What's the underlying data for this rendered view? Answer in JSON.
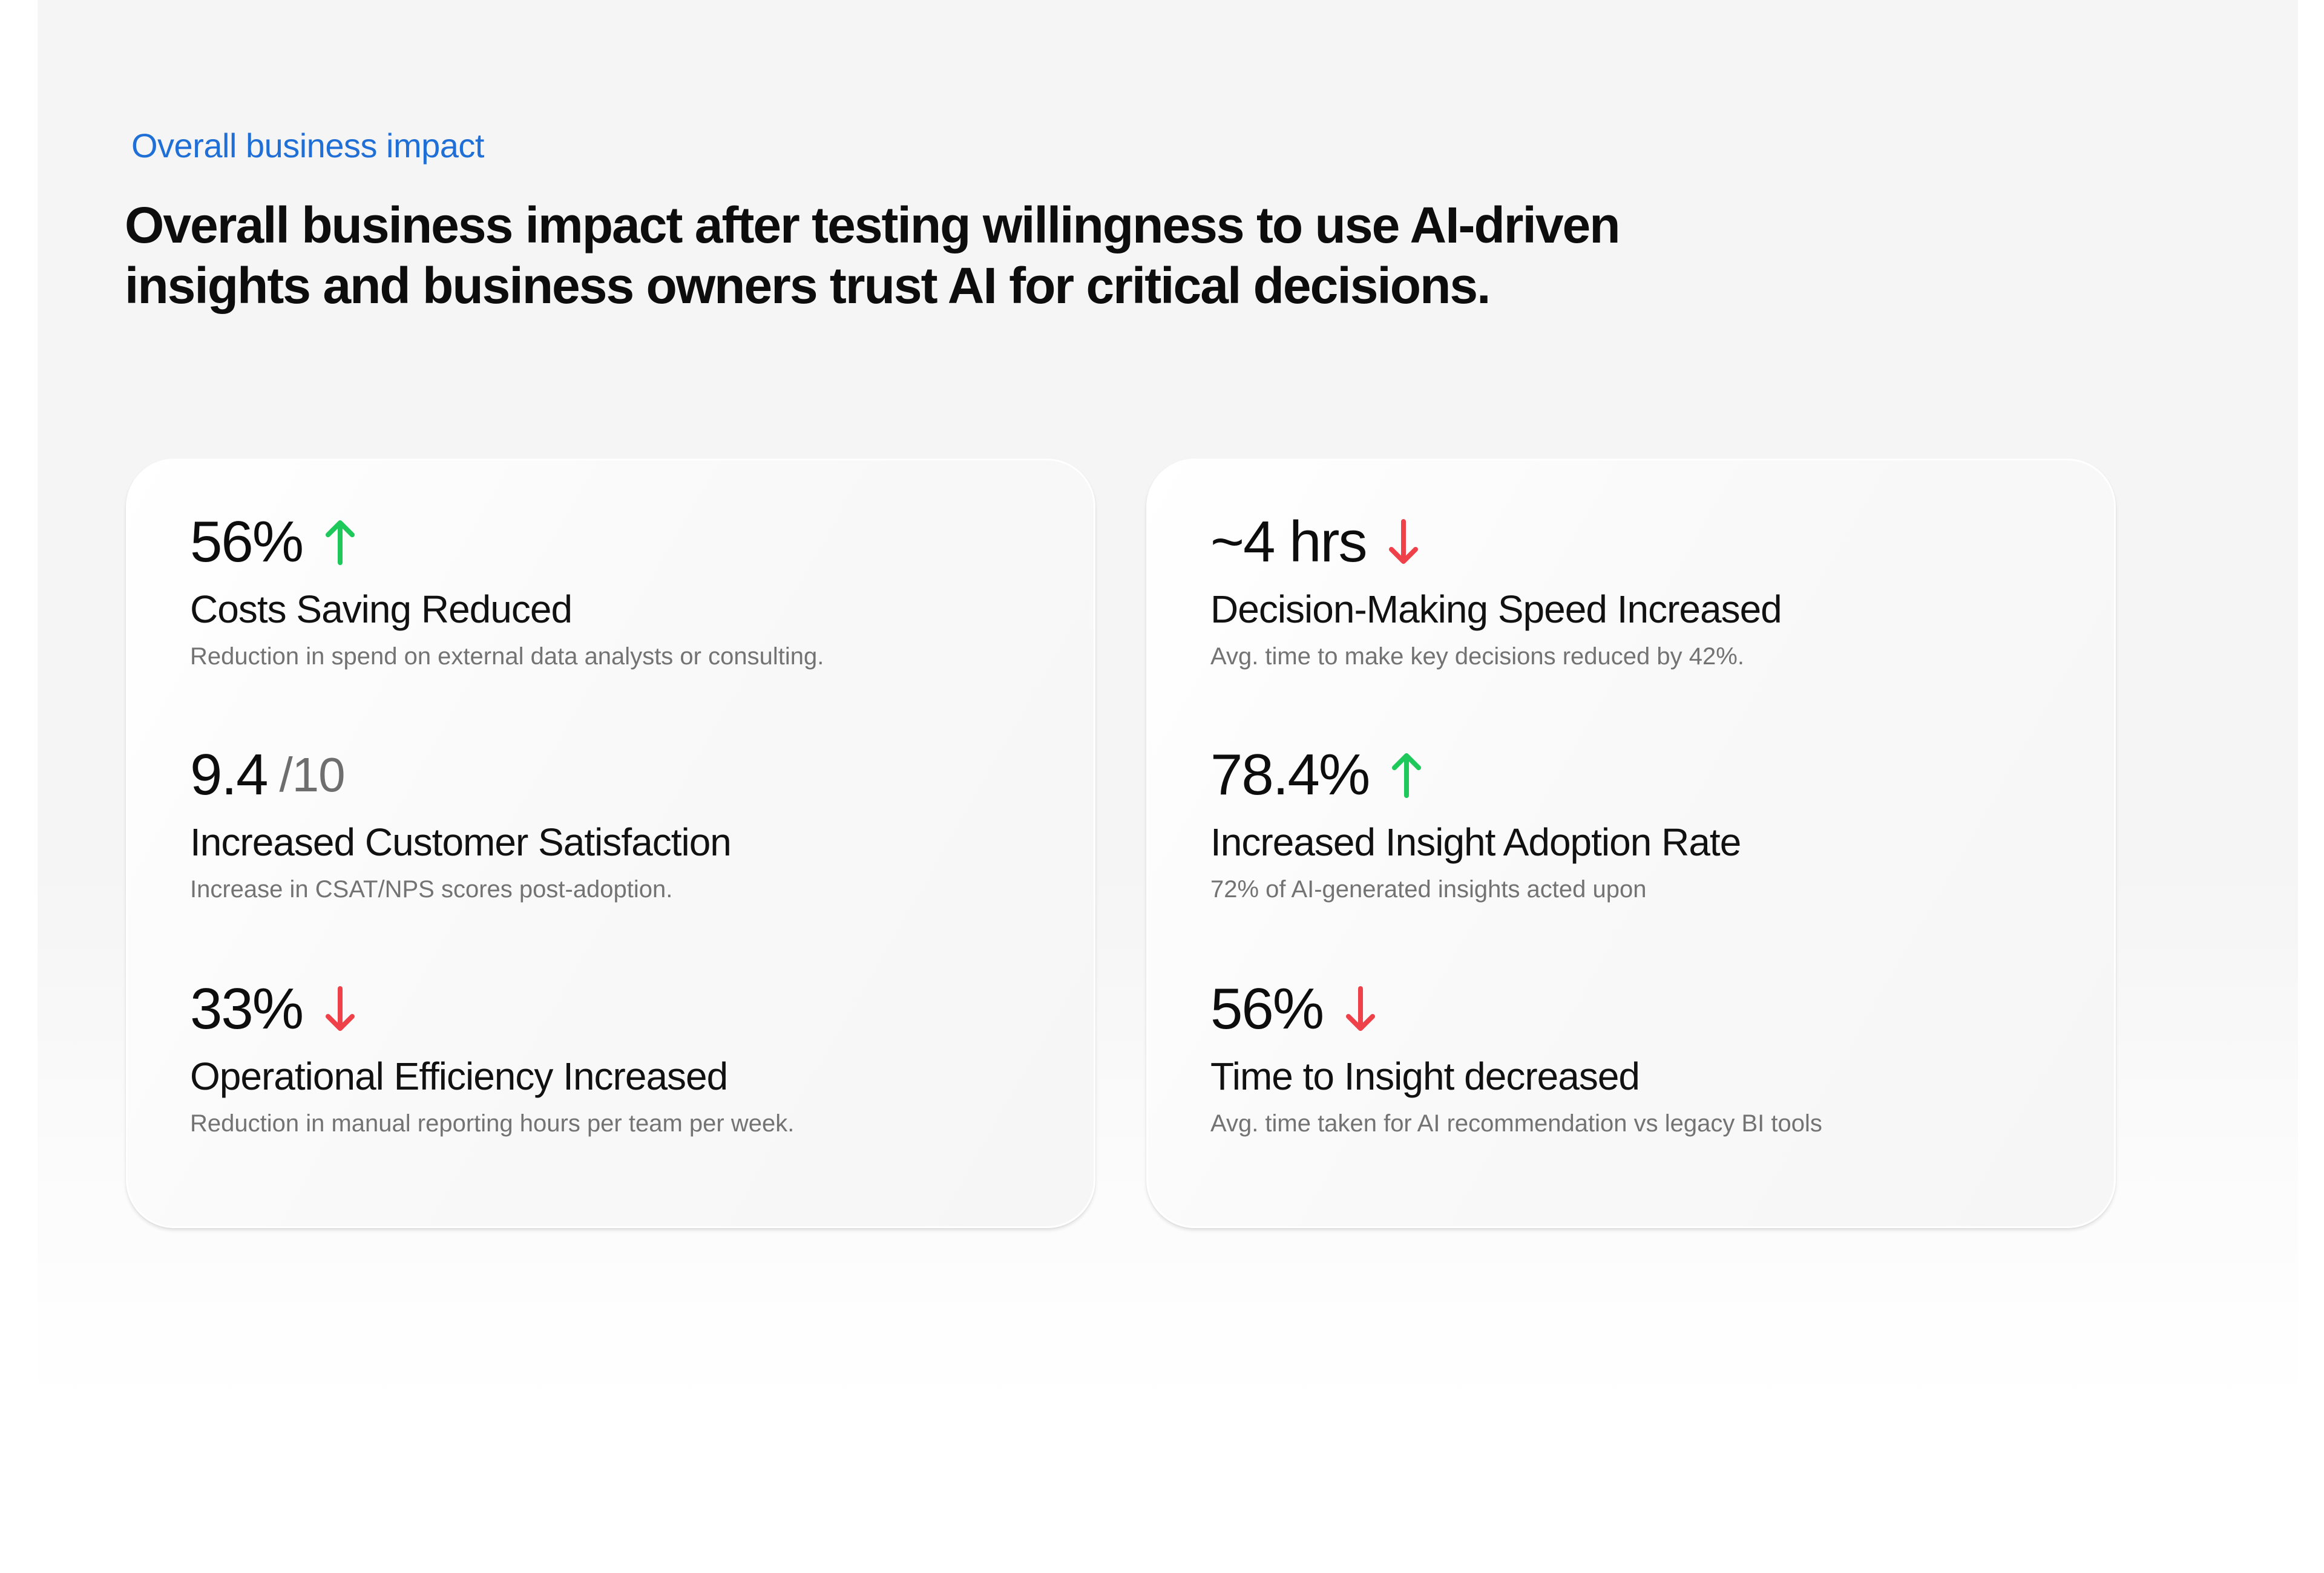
{
  "colors": {
    "accent": "#1f6fd6",
    "up": "#1ec85a",
    "down": "#ef4149"
  },
  "header": {
    "eyebrow": "Overall business impact",
    "headline_line1": "Overall business impact after testing willingness to use  AI-driven",
    "headline_line2": "insights and  business owners trust AI for critical decisions."
  },
  "cards": [
    {
      "metrics": [
        {
          "value": "56%",
          "suffix": "",
          "trend": "arrow-up-icon",
          "title": "Costs Saving Reduced",
          "description": "Reduction in spend on external data analysts or consulting."
        },
        {
          "value": "9.4",
          "suffix": "/10",
          "trend": "",
          "title": "Increased Customer Satisfaction",
          "description": "Increase in CSAT/NPS scores post-adoption."
        },
        {
          "value": "33%",
          "suffix": "",
          "trend": "arrow-down-icon",
          "title": "Operational Efficiency Increased",
          "description": "Reduction in manual reporting hours per team per week."
        }
      ]
    },
    {
      "metrics": [
        {
          "value": "~4 hrs",
          "suffix": "",
          "trend": "arrow-down-icon",
          "title": "Decision-Making Speed  Increased",
          "description": "Avg. time to make key decisions reduced by 42%."
        },
        {
          "value": "78.4%",
          "suffix": "",
          "trend": "arrow-up-icon",
          "title": "Increased Insight Adoption Rate",
          "description": "72% of AI-generated insights acted upon"
        },
        {
          "value": "56%",
          "suffix": "",
          "trend": "arrow-down-icon",
          "title": "Time to Insight decreased",
          "description": "Avg. time taken for  AI recommendation vs legacy BI tools"
        }
      ]
    }
  ]
}
